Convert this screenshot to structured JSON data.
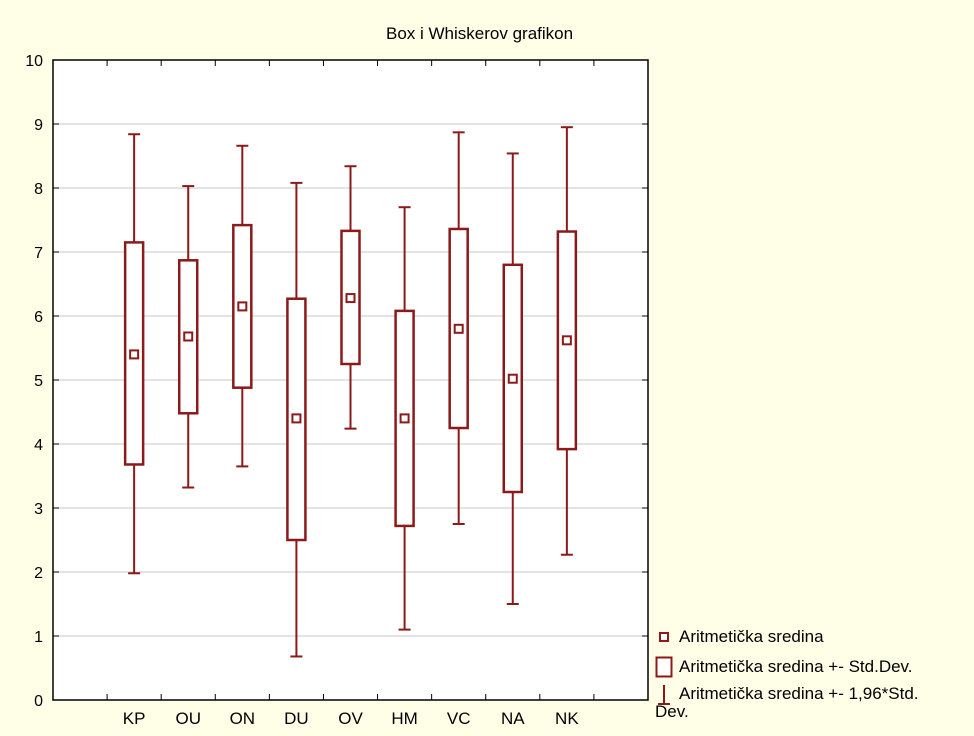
{
  "chart_data": {
    "type": "box",
    "title": "Box i Whiskerov grafikon",
    "categories": [
      "KP",
      "OU",
      "ON",
      "DU",
      "OV",
      "HM",
      "VC",
      "NA",
      "NK"
    ],
    "mean": [
      5.4,
      5.68,
      6.15,
      4.4,
      6.28,
      4.4,
      5.8,
      5.02,
      5.62
    ],
    "box_low": [
      3.68,
      4.48,
      4.88,
      2.5,
      5.25,
      2.72,
      4.25,
      3.25,
      3.92
    ],
    "box_high": [
      7.15,
      6.87,
      7.42,
      6.27,
      7.33,
      6.08,
      7.36,
      6.8,
      7.32
    ],
    "whisker_low": [
      1.98,
      3.32,
      3.65,
      0.68,
      4.24,
      1.1,
      2.75,
      1.5,
      2.27
    ],
    "whisker_high": [
      8.84,
      8.03,
      8.66,
      8.08,
      8.34,
      7.7,
      8.87,
      8.54,
      8.95
    ],
    "ylim": [
      0,
      10
    ],
    "yticks": [
      "0",
      "1",
      "2",
      "3",
      "4",
      "5",
      "6",
      "7",
      "8",
      "9",
      "10"
    ],
    "grid": true,
    "color": "#8B1A1A",
    "legend": {
      "placement": "bottom-right",
      "mean": "Aritmetička sredina",
      "box": "Aritmetička sredina +- Std.Dev.",
      "whisker": "Aritmetička sredina +- 1,96*Std.",
      "whisker_cont": "Dev."
    }
  }
}
